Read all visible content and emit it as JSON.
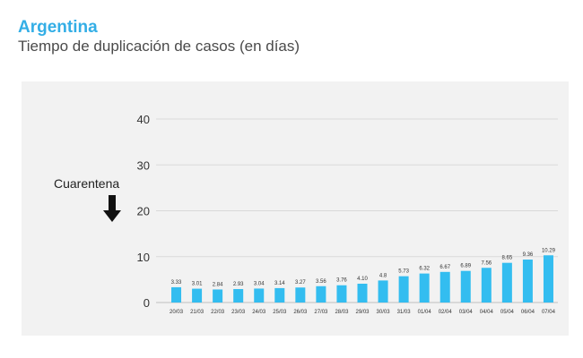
{
  "header": {
    "title": "Argentina",
    "subtitle": "Tiempo de duplicación de casos (en días)"
  },
  "annotation": {
    "label": "Cuarentena",
    "icon": "arrow-down-icon"
  },
  "colors": {
    "title": "#33aee6",
    "bar": "#33bdf0",
    "panel": "#f2f2f2"
  },
  "chart_data": {
    "type": "bar",
    "title": "",
    "xlabel": "",
    "ylabel": "",
    "categories": [
      "20/03",
      "21/03",
      "22/03",
      "23/03",
      "24/03",
      "25/03",
      "26/03",
      "27/03",
      "28/03",
      "29/03",
      "30/03",
      "31/03",
      "01/04",
      "02/04",
      "03/04",
      "04/04",
      "05/04",
      "06/04",
      "07/04"
    ],
    "values": [
      3.33,
      3.01,
      2.84,
      2.93,
      3.04,
      3.14,
      3.27,
      3.56,
      3.76,
      4.1,
      4.8,
      5.73,
      6.32,
      6.67,
      6.89,
      7.56,
      8.65,
      9.36,
      10.29
    ],
    "data_labels": [
      "3.33",
      "3.01",
      "2.84",
      "2.93",
      "3.04",
      "3.14",
      "3.27",
      "3.56",
      "3.76",
      "4.10",
      "4.8",
      "5.73",
      "6.32",
      "6.67",
      "6.89",
      "7.56",
      "8.65",
      "9.36",
      "10.29"
    ],
    "ylim": [
      0,
      40
    ],
    "yticks": [
      0,
      10,
      20,
      30,
      40
    ],
    "grid": true,
    "legend": "none"
  }
}
